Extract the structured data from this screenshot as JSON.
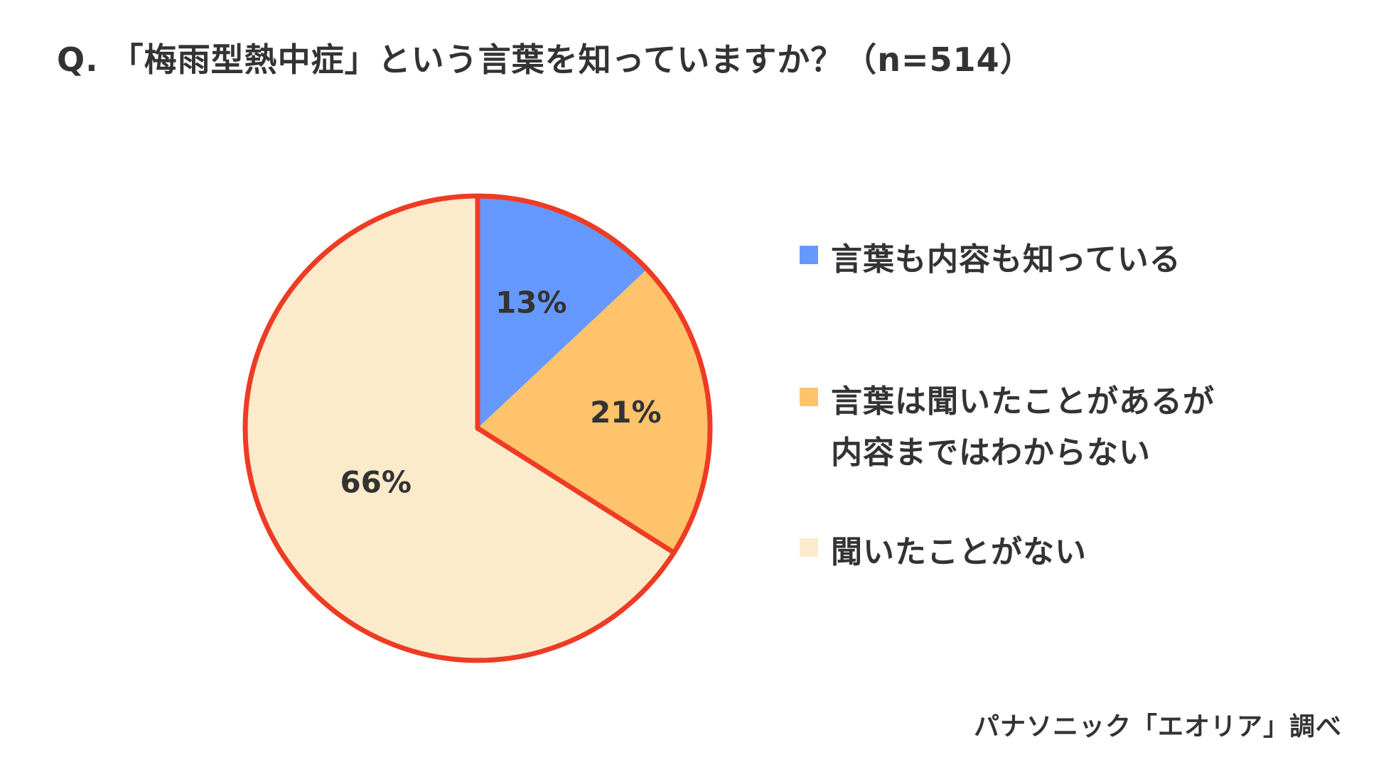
{
  "title": "Q. 「梅雨型熱中症」という言葉を知っていますか？（n=514）",
  "source": "パナソニック「エオリア」調べ",
  "colors": {
    "outline": "#EE3B24",
    "text": "#333333"
  },
  "chart_data": {
    "type": "pie",
    "title": "Q. 「梅雨型熱中症」という言葉を知っていますか？（n=514）",
    "n": 514,
    "start_angle_deg": 0,
    "direction": "clockwise",
    "highlighted_slices": [
      0,
      1
    ],
    "legend_position": "right",
    "slices": [
      {
        "label": "言葉も内容も知っている",
        "value": 13,
        "display": "13%",
        "color": "#6699FF"
      },
      {
        "label": "言葉は聞いたことがあるが\n内容まではわからない",
        "value": 21,
        "display": "21%",
        "color": "#FFC36B"
      },
      {
        "label": "聞いたことがない",
        "value": 66,
        "display": "66%",
        "color": "#FCEBCB"
      }
    ]
  }
}
